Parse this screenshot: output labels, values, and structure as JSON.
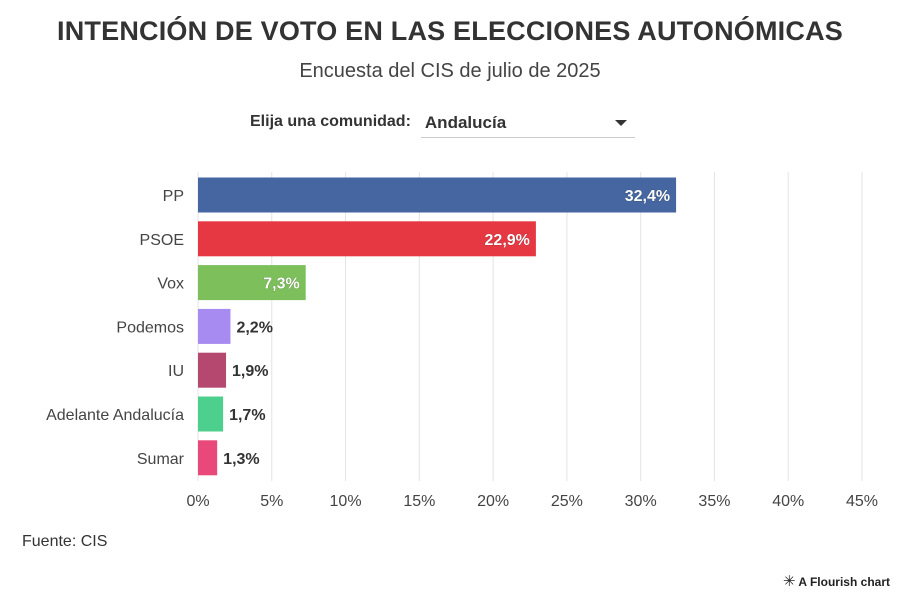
{
  "header": {
    "title": "INTENCIÓN DE VOTO EN LAS ELECCIONES AUTONÓMICAS",
    "subtitle": "Encuesta del CIS de julio de 2025"
  },
  "control": {
    "label": "Elija una comunidad:",
    "selected": "Andalucía"
  },
  "footer": {
    "source": "Fuente: CIS",
    "credit": "A Flourish chart",
    "credit_icon": "flourish-icon"
  },
  "chart_data": {
    "type": "bar",
    "orientation": "horizontal",
    "title": "INTENCIÓN DE VOTO EN LAS ELECCIONES AUTONÓMICAS",
    "subtitle": "Encuesta del CIS de julio de 2025",
    "categories": [
      "PP",
      "PSOE",
      "Vox",
      "Podemos",
      "IU",
      "Adelante Andalucía",
      "Sumar"
    ],
    "values": [
      32.4,
      22.9,
      7.3,
      2.2,
      1.9,
      1.7,
      1.3
    ],
    "labels": [
      "32,4%",
      "22,9%",
      "7,3%",
      "2,2%",
      "1,9%",
      "1,7%",
      "1,3%"
    ],
    "colors": [
      "#4566a1",
      "#e53843",
      "#7dbf5a",
      "#a88bf0",
      "#b5486e",
      "#4dcf8e",
      "#e8487a"
    ],
    "xlim": [
      0,
      45
    ],
    "xticks": [
      0,
      5,
      10,
      15,
      20,
      25,
      30,
      35,
      40,
      45
    ],
    "xtick_labels": [
      "0%",
      "5%",
      "10%",
      "15%",
      "20%",
      "25%",
      "30%",
      "35%",
      "40%",
      "45%"
    ],
    "grid": true,
    "xlabel": "",
    "ylabel": ""
  }
}
